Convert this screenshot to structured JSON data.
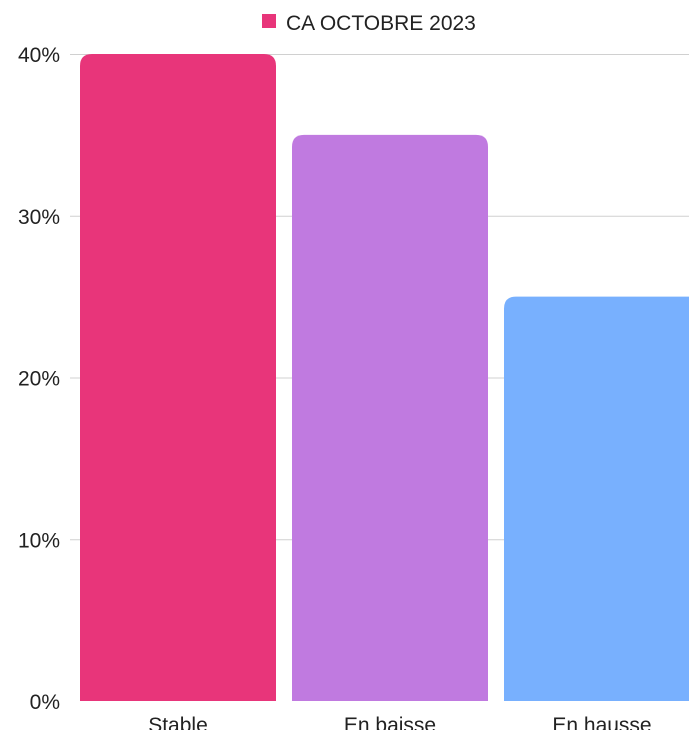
{
  "chart_data": {
    "type": "bar",
    "title": "",
    "xlabel": "",
    "ylabel": "",
    "categories": [
      "Stable",
      "En baisse",
      "En hausse"
    ],
    "series": [
      {
        "name": "CA OCTOBRE 2023",
        "values": [
          0.4,
          0.35,
          0.25
        ],
        "colors": [
          "#e8357a",
          "#c07ae0",
          "#78b0fe"
        ]
      }
    ],
    "ylim": [
      0,
      0.4
    ],
    "yticks": [
      {
        "value": 0.0,
        "label": "0%"
      },
      {
        "value": 0.1,
        "label": "10%"
      },
      {
        "value": 0.2,
        "label": "20%"
      },
      {
        "value": 0.3,
        "label": "30%"
      },
      {
        "value": 0.4,
        "label": "40%"
      }
    ],
    "legend": {
      "position": "top-center",
      "entries": [
        {
          "label": "CA OCTOBRE 2023",
          "color": "#e8357a"
        }
      ]
    },
    "grid": true
  }
}
